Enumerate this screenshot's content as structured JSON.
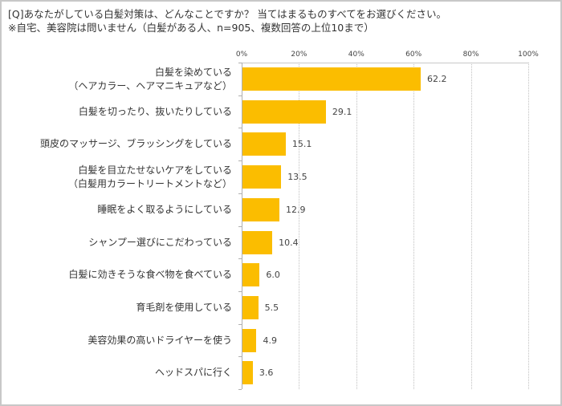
{
  "header": {
    "question": "[Q]あなたがしている白髪対策は、どんなことですか？ 当てはまるものすべてをお選びください。",
    "note": "※自宅、美容院は問いません（白髪がある人、n=905、複数回答の上位10まで）"
  },
  "axis": {
    "ticks": [
      "0%",
      "20%",
      "40%",
      "60%",
      "80%",
      "100%"
    ]
  },
  "bars": [
    {
      "label_line1": "白髪を染めている",
      "label_line2": "（ヘアカラー、ヘアマニキュアなど）",
      "value": "62.2"
    },
    {
      "label_line1": "白髪を切ったり、抜いたりしている",
      "label_line2": "",
      "value": "29.1"
    },
    {
      "label_line1": "頭皮のマッサージ、ブラッシングをしている",
      "label_line2": "",
      "value": "15.1"
    },
    {
      "label_line1": "白髪を目立たせないケアをしている",
      "label_line2": "（白髪用カラートリートメントなど）",
      "value": "13.5"
    },
    {
      "label_line1": "睡眠をよく取るようにしている",
      "label_line2": "",
      "value": "12.9"
    },
    {
      "label_line1": "シャンプー選びにこだわっている",
      "label_line2": "",
      "value": "10.4"
    },
    {
      "label_line1": "白髪に効きそうな食べ物を食べている",
      "label_line2": "",
      "value": "6.0"
    },
    {
      "label_line1": "育毛剤を使用している",
      "label_line2": "",
      "value": "5.5"
    },
    {
      "label_line1": "美容効果の高いドライヤーを使う",
      "label_line2": "",
      "value": "4.9"
    },
    {
      "label_line1": "ヘッドスパに行く",
      "label_line2": "",
      "value": "3.6"
    }
  ],
  "colors": {
    "bar": "#fbbd00"
  },
  "chart_data": {
    "type": "bar",
    "orientation": "horizontal",
    "title": "[Q]あなたがしている白髪対策は、どんなことですか？ 当てはまるものすべてをお選びください。",
    "subtitle": "※自宅、美容院は問いません（白髪がある人、n=905、複数回答の上位10まで）",
    "categories": [
      "白髪を染めている（ヘアカラー、ヘアマニキュアなど）",
      "白髪を切ったり、抜いたりしている",
      "頭皮のマッサージ、ブラッシングをしている",
      "白髪を目立たせないケアをしている（白髪用カラートリートメントなど）",
      "睡眠をよく取るようにしている",
      "シャンプー選びにこだわっている",
      "白髪に効きそうな食べ物を食べている",
      "育毛剤を使用している",
      "美容効果の高いドライヤーを使う",
      "ヘッドスパに行く"
    ],
    "values": [
      62.2,
      29.1,
      15.1,
      13.5,
      12.9,
      10.4,
      6.0,
      5.5,
      4.9,
      3.6
    ],
    "xlabel": "",
    "ylabel": "",
    "xlim": [
      0,
      100
    ],
    "xticks": [
      "0%",
      "20%",
      "40%",
      "60%",
      "80%",
      "100%"
    ],
    "grid": true,
    "data_labels": true,
    "legend": null
  }
}
